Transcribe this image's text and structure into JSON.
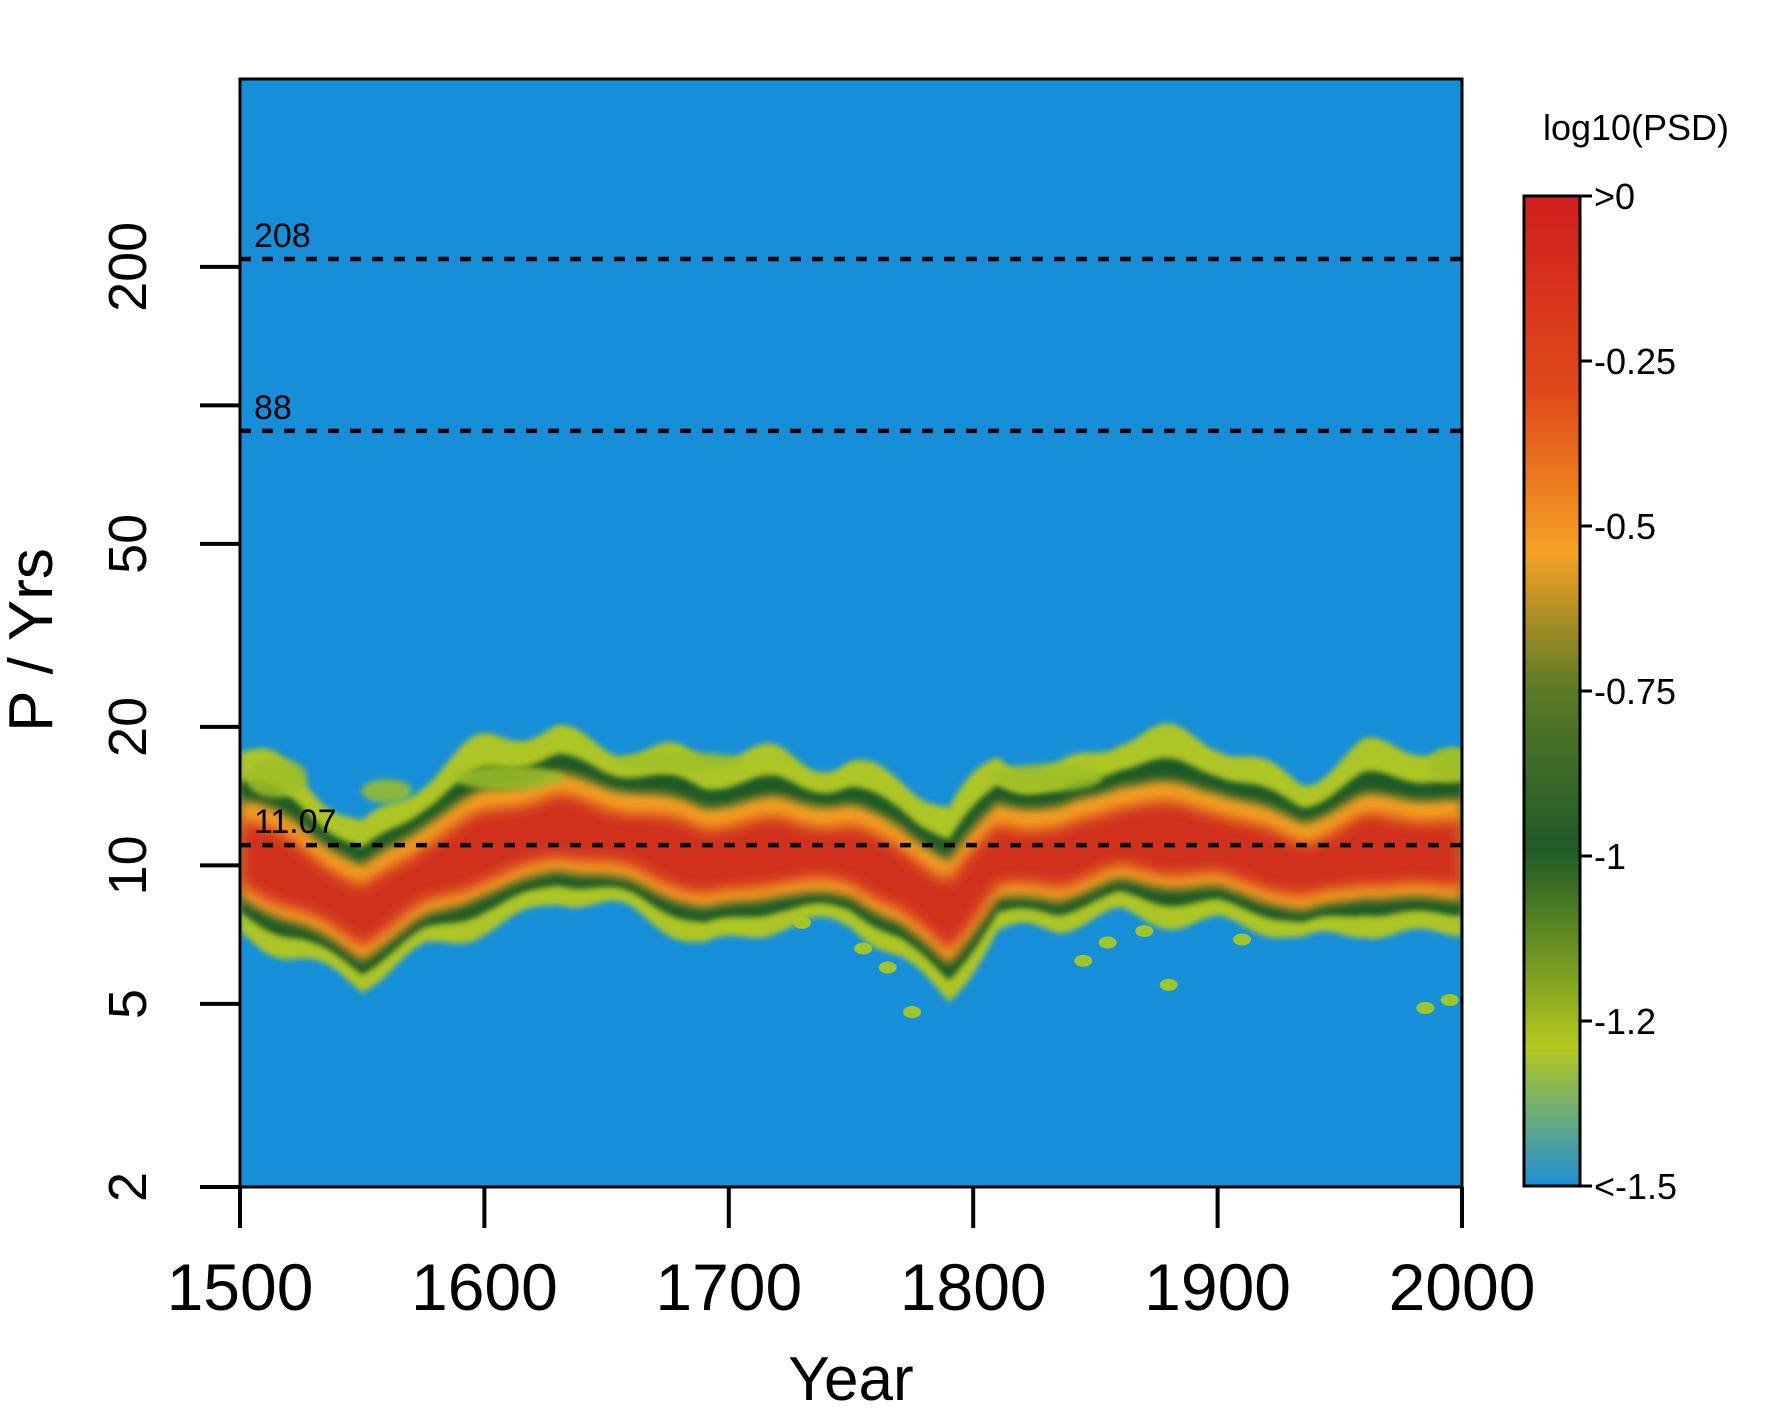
{
  "chart_data": {
    "type": "heatmap",
    "xlabel": "Year",
    "ylabel": "P / Yrs",
    "xlim": [
      1500,
      2000
    ],
    "ylim": [
      2,
      512
    ],
    "y_scale": "log",
    "x_ticks": [
      "1500",
      "1600",
      "1700",
      "1800",
      "1900",
      "2000"
    ],
    "y_ticks": [
      "2",
      "5",
      "10",
      "20",
      "50",
      "200"
    ],
    "y_tick_values": [
      2,
      5,
      10,
      20,
      50,
      200
    ],
    "x_tick_values": [
      1500,
      1600,
      1700,
      1800,
      1900,
      2000
    ],
    "reference_lines": [
      {
        "period": 208,
        "label": "208"
      },
      {
        "period": 88,
        "label": "88"
      },
      {
        "period": 11.07,
        "label": "11.07"
      }
    ],
    "colorbar": {
      "title": "log10(PSD)",
      "range": [
        -1.5,
        0
      ],
      "tick_values": [
        0,
        -0.25,
        -0.5,
        -0.75,
        -1,
        -1.25,
        -1.5
      ],
      "tick_labels": [
        ">0",
        "-0.25",
        "-0.5",
        "-0.75",
        "-1",
        "-1.2",
        "<-1.5"
      ],
      "colors": [
        "#d01e1e",
        "#e04a1a",
        "#f5a224",
        "#5a7a26",
        "#1f5a28",
        "#b6c81e",
        "#1e8fd6"
      ],
      "stops": [
        0,
        0.2,
        0.36,
        0.5,
        0.66,
        0.86,
        1.0
      ]
    },
    "background_color": "#168fd8",
    "band": {
      "description_values": "dominant power band centered near the 11.07-year period",
      "ridge": [
        {
          "year": 1500,
          "period": 10.5
        },
        {
          "year": 1525,
          "period": 9.2
        },
        {
          "year": 1550,
          "period": 7.6
        },
        {
          "year": 1575,
          "period": 9.4
        },
        {
          "year": 1600,
          "period": 10.8
        },
        {
          "year": 1630,
          "period": 12.0
        },
        {
          "year": 1660,
          "period": 11.2
        },
        {
          "year": 1690,
          "period": 10.0
        },
        {
          "year": 1720,
          "period": 10.6
        },
        {
          "year": 1750,
          "period": 10.4
        },
        {
          "year": 1770,
          "period": 9.2
        },
        {
          "year": 1790,
          "period": 7.6
        },
        {
          "year": 1810,
          "period": 10.4
        },
        {
          "year": 1835,
          "period": 10.2
        },
        {
          "year": 1860,
          "period": 11.4
        },
        {
          "year": 1900,
          "period": 11.0
        },
        {
          "year": 1935,
          "period": 9.6
        },
        {
          "year": 1960,
          "period": 10.6
        },
        {
          "year": 2000,
          "period": 10.4
        }
      ]
    }
  }
}
